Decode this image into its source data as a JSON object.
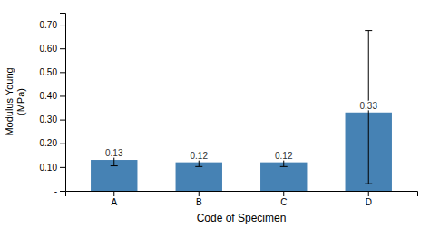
{
  "chart_data": {
    "type": "bar",
    "categories": [
      "A",
      "B",
      "C",
      "D"
    ],
    "values": [
      0.13,
      0.12,
      0.12,
      0.33
    ],
    "errors_upper": [
      0.025,
      0.018,
      0.018,
      0.345
    ],
    "errors_lower": [
      0.025,
      0.018,
      0.018,
      0.3
    ],
    "xlabel": "Code of Specimen",
    "ylabel": "Modulus Young\n(MPa)",
    "ylim": [
      0,
      0.75
    ],
    "yticks": [
      {
        "value": 0.0,
        "label": "-"
      },
      {
        "value": 0.1,
        "label": "0.10"
      },
      {
        "value": 0.2,
        "label": "0.20"
      },
      {
        "value": 0.3,
        "label": "0.30"
      },
      {
        "value": 0.4,
        "label": "0.40"
      },
      {
        "value": 0.5,
        "label": "0.50"
      },
      {
        "value": 0.6,
        "label": "0.60"
      },
      {
        "value": 0.7,
        "label": "0.70"
      }
    ],
    "data_labels": true,
    "grid": false
  }
}
